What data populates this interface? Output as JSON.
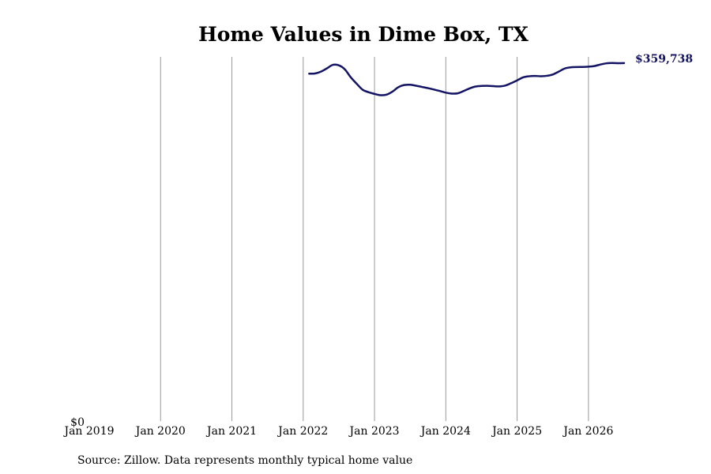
{
  "colors": {
    "line": "#141464",
    "grid": "#999999",
    "text": "#000000"
  },
  "chart_data": {
    "type": "line",
    "title": "Home Values in Dime Box, TX",
    "xlabel": "",
    "ylabel": "",
    "grid": "vertical",
    "legend": "none",
    "x_ticks": [
      "Jan 2019",
      "Jan 2020",
      "Jan 2021",
      "Jan 2022",
      "Jan 2023",
      "Jan 2024",
      "Jan 2025",
      "Jan 2026"
    ],
    "y_ticks": [
      "$0"
    ],
    "xlim": [
      "2019-01",
      "2026-07"
    ],
    "ylim": [
      0,
      366000
    ],
    "end_label": "$359,738",
    "series": [
      {
        "x": [
          "2022-02",
          "2022-03",
          "2022-04",
          "2022-05",
          "2022-06",
          "2022-07",
          "2022-08",
          "2022-09",
          "2022-10",
          "2022-11",
          "2022-12",
          "2023-01",
          "2023-02",
          "2023-03",
          "2023-04",
          "2023-05",
          "2023-06",
          "2023-07",
          "2023-08",
          "2023-09",
          "2023-10",
          "2023-11",
          "2023-12",
          "2024-01",
          "2024-02",
          "2024-03",
          "2024-04",
          "2024-05",
          "2024-06",
          "2024-07",
          "2024-08",
          "2024-09",
          "2024-10",
          "2024-11",
          "2024-12",
          "2025-01",
          "2025-02",
          "2025-03",
          "2025-04",
          "2025-05",
          "2025-06",
          "2025-07",
          "2025-08",
          "2025-09",
          "2025-10",
          "2025-11",
          "2025-12",
          "2026-01",
          "2026-02",
          "2026-03",
          "2026-04",
          "2026-05",
          "2026-06",
          "2026-07"
        ],
        "values": [
          349100,
          349300,
          351200,
          354500,
          358000,
          357500,
          353500,
          345500,
          339000,
          333000,
          330500,
          328800,
          327500,
          328000,
          331000,
          335500,
          337700,
          338000,
          337000,
          335800,
          334600,
          333200,
          331700,
          330000,
          329100,
          329400,
          331700,
          334300,
          336200,
          336800,
          336900,
          336600,
          336300,
          337200,
          339600,
          342400,
          345400,
          346500,
          346800,
          346600,
          347000,
          348300,
          351200,
          354300,
          355500,
          355800,
          355900,
          356200,
          356800,
          358300,
          359500,
          359800,
          359600,
          359738
        ]
      }
    ]
  },
  "footer": {
    "source": "Source: Zillow. Data represents monthly typical home value"
  }
}
